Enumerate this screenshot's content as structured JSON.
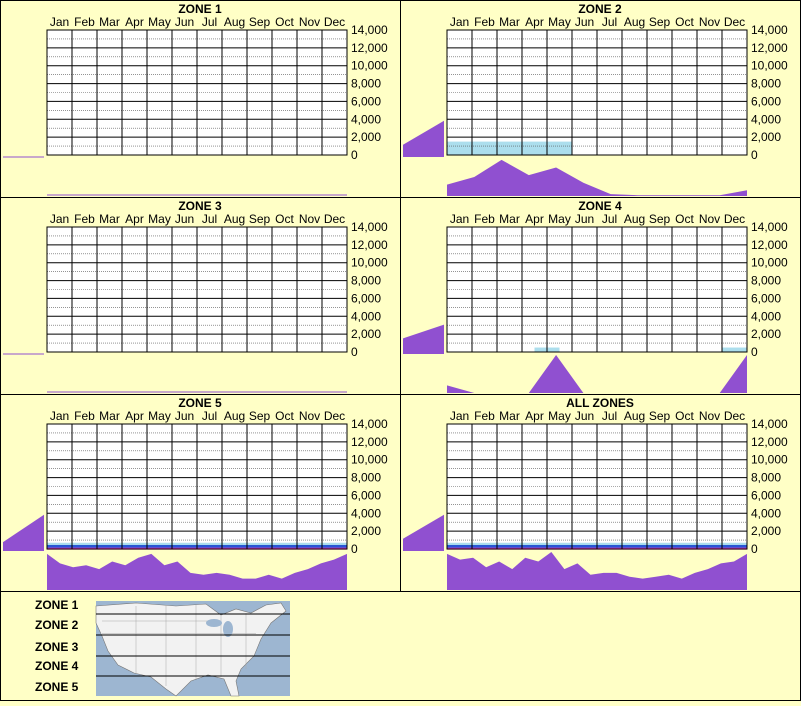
{
  "months": [
    "Jan",
    "Feb",
    "Mar",
    "Apr",
    "May",
    "Jun",
    "Jul",
    "Aug",
    "Sep",
    "Oct",
    "Nov",
    "Dec"
  ],
  "y_ticks": [
    "14,000",
    "12,000",
    "10,000",
    "8,000",
    "6,000",
    "4,000",
    "2,000",
    "0"
  ],
  "colors": {
    "background": "#ffffc6",
    "profile": "#9050d0",
    "map_water": "#9db6d1",
    "map_land": "#f2f2f2",
    "heat_light": "#9ed8ea",
    "heat_blue": "#1040d0",
    "heat_pink": "#ff3cc8"
  },
  "chart_data": [
    {
      "type": "heatmap",
      "title": "ZONE 1",
      "ylim": [
        0,
        14000
      ],
      "xlabel": "",
      "ylabel": "",
      "elevation_profile": [
        0,
        0,
        0,
        0,
        0,
        0,
        0,
        0,
        0,
        0,
        0,
        0
      ],
      "monthly_profile": [
        0,
        0,
        0,
        0,
        0,
        0,
        0,
        0,
        0,
        0,
        0,
        0
      ],
      "heat_bands": []
    },
    {
      "type": "heatmap",
      "title": "ZONE 2",
      "ylim": [
        0,
        14000
      ],
      "xlabel": "",
      "ylabel": "",
      "elevation_profile": [
        0.3,
        1.0
      ],
      "monthly_profile": [
        0.3,
        0.5,
        0.95,
        0.55,
        0.75,
        0.35,
        0.05,
        0.02,
        0.02,
        0.02,
        0.02,
        0.15
      ],
      "heat_bands": [
        {
          "from_month": 0,
          "to_month": 5,
          "y_from": 0,
          "y_to": 1500,
          "color": "heat_light"
        }
      ]
    },
    {
      "type": "heatmap",
      "title": "ZONE 3",
      "ylim": [
        0,
        14000
      ],
      "xlabel": "",
      "ylabel": "",
      "elevation_profile": [
        0,
        0,
        0,
        0,
        0,
        0,
        0,
        0,
        0,
        0,
        0,
        0
      ],
      "monthly_profile": [
        0,
        0,
        0,
        0,
        0,
        0,
        0,
        0,
        0,
        0,
        0,
        0
      ],
      "heat_bands": []
    },
    {
      "type": "heatmap",
      "title": "ZONE 4",
      "ylim": [
        0,
        14000
      ],
      "xlabel": "",
      "ylabel": "",
      "elevation_profile": [
        0.4,
        0.8
      ],
      "monthly_profile": [
        0.2,
        0,
        0,
        0,
        1.0,
        0,
        0,
        0,
        0,
        0,
        0,
        1.0
      ],
      "heat_bands": [
        {
          "from_month": 3.5,
          "to_month": 4.5,
          "y_from": 0,
          "y_to": 500,
          "color": "heat_light"
        },
        {
          "from_month": 11,
          "to_month": 12,
          "y_from": 0,
          "y_to": 500,
          "color": "heat_light"
        }
      ]
    },
    {
      "type": "heatmap",
      "title": "ZONE 5",
      "ylim": [
        0,
        14000
      ],
      "xlabel": "",
      "ylabel": "",
      "elevation_profile": [
        0.2,
        1.0
      ],
      "monthly_profile": [
        0.95,
        0.7,
        0.6,
        0.65,
        0.55,
        0.75,
        0.65,
        0.85,
        0.95,
        0.65,
        0.75,
        0.45,
        0.4,
        0.45,
        0.4,
        0.3,
        0.3,
        0.4,
        0.3,
        0.45,
        0.55,
        0.7,
        0.8,
        0.95
      ],
      "heat_bands": [
        {
          "from_month": 0,
          "to_month": 12,
          "y_from": 0,
          "y_to": 700,
          "color": "heat_light"
        },
        {
          "from_month": 0,
          "to_month": 12,
          "y_from": 0,
          "y_to": 450,
          "color": "heat_blue"
        },
        {
          "from_month": 0,
          "to_month": 12,
          "y_from": 0,
          "y_to": 150,
          "color": "heat_pink"
        }
      ]
    },
    {
      "type": "heatmap",
      "title": "ALL ZONES",
      "ylim": [
        0,
        14000
      ],
      "xlabel": "",
      "ylabel": "",
      "elevation_profile": [
        0.3,
        1.0
      ],
      "monthly_profile": [
        0.95,
        0.8,
        0.85,
        0.6,
        0.75,
        0.55,
        0.85,
        0.75,
        1.0,
        0.55,
        0.7,
        0.4,
        0.45,
        0.45,
        0.35,
        0.3,
        0.35,
        0.4,
        0.3,
        0.45,
        0.55,
        0.7,
        0.75,
        0.95
      ],
      "heat_bands": [
        {
          "from_month": 0,
          "to_month": 12,
          "y_from": 0,
          "y_to": 700,
          "color": "heat_light"
        },
        {
          "from_month": 0,
          "to_month": 12,
          "y_from": 0,
          "y_to": 450,
          "color": "heat_blue"
        },
        {
          "from_month": 0,
          "to_month": 12,
          "y_from": 0,
          "y_to": 150,
          "color": "heat_pink"
        }
      ]
    }
  ],
  "legend": {
    "zones": [
      "ZONE 1",
      "ZONE 2",
      "ZONE 3",
      "ZONE 4",
      "ZONE 5"
    ]
  }
}
